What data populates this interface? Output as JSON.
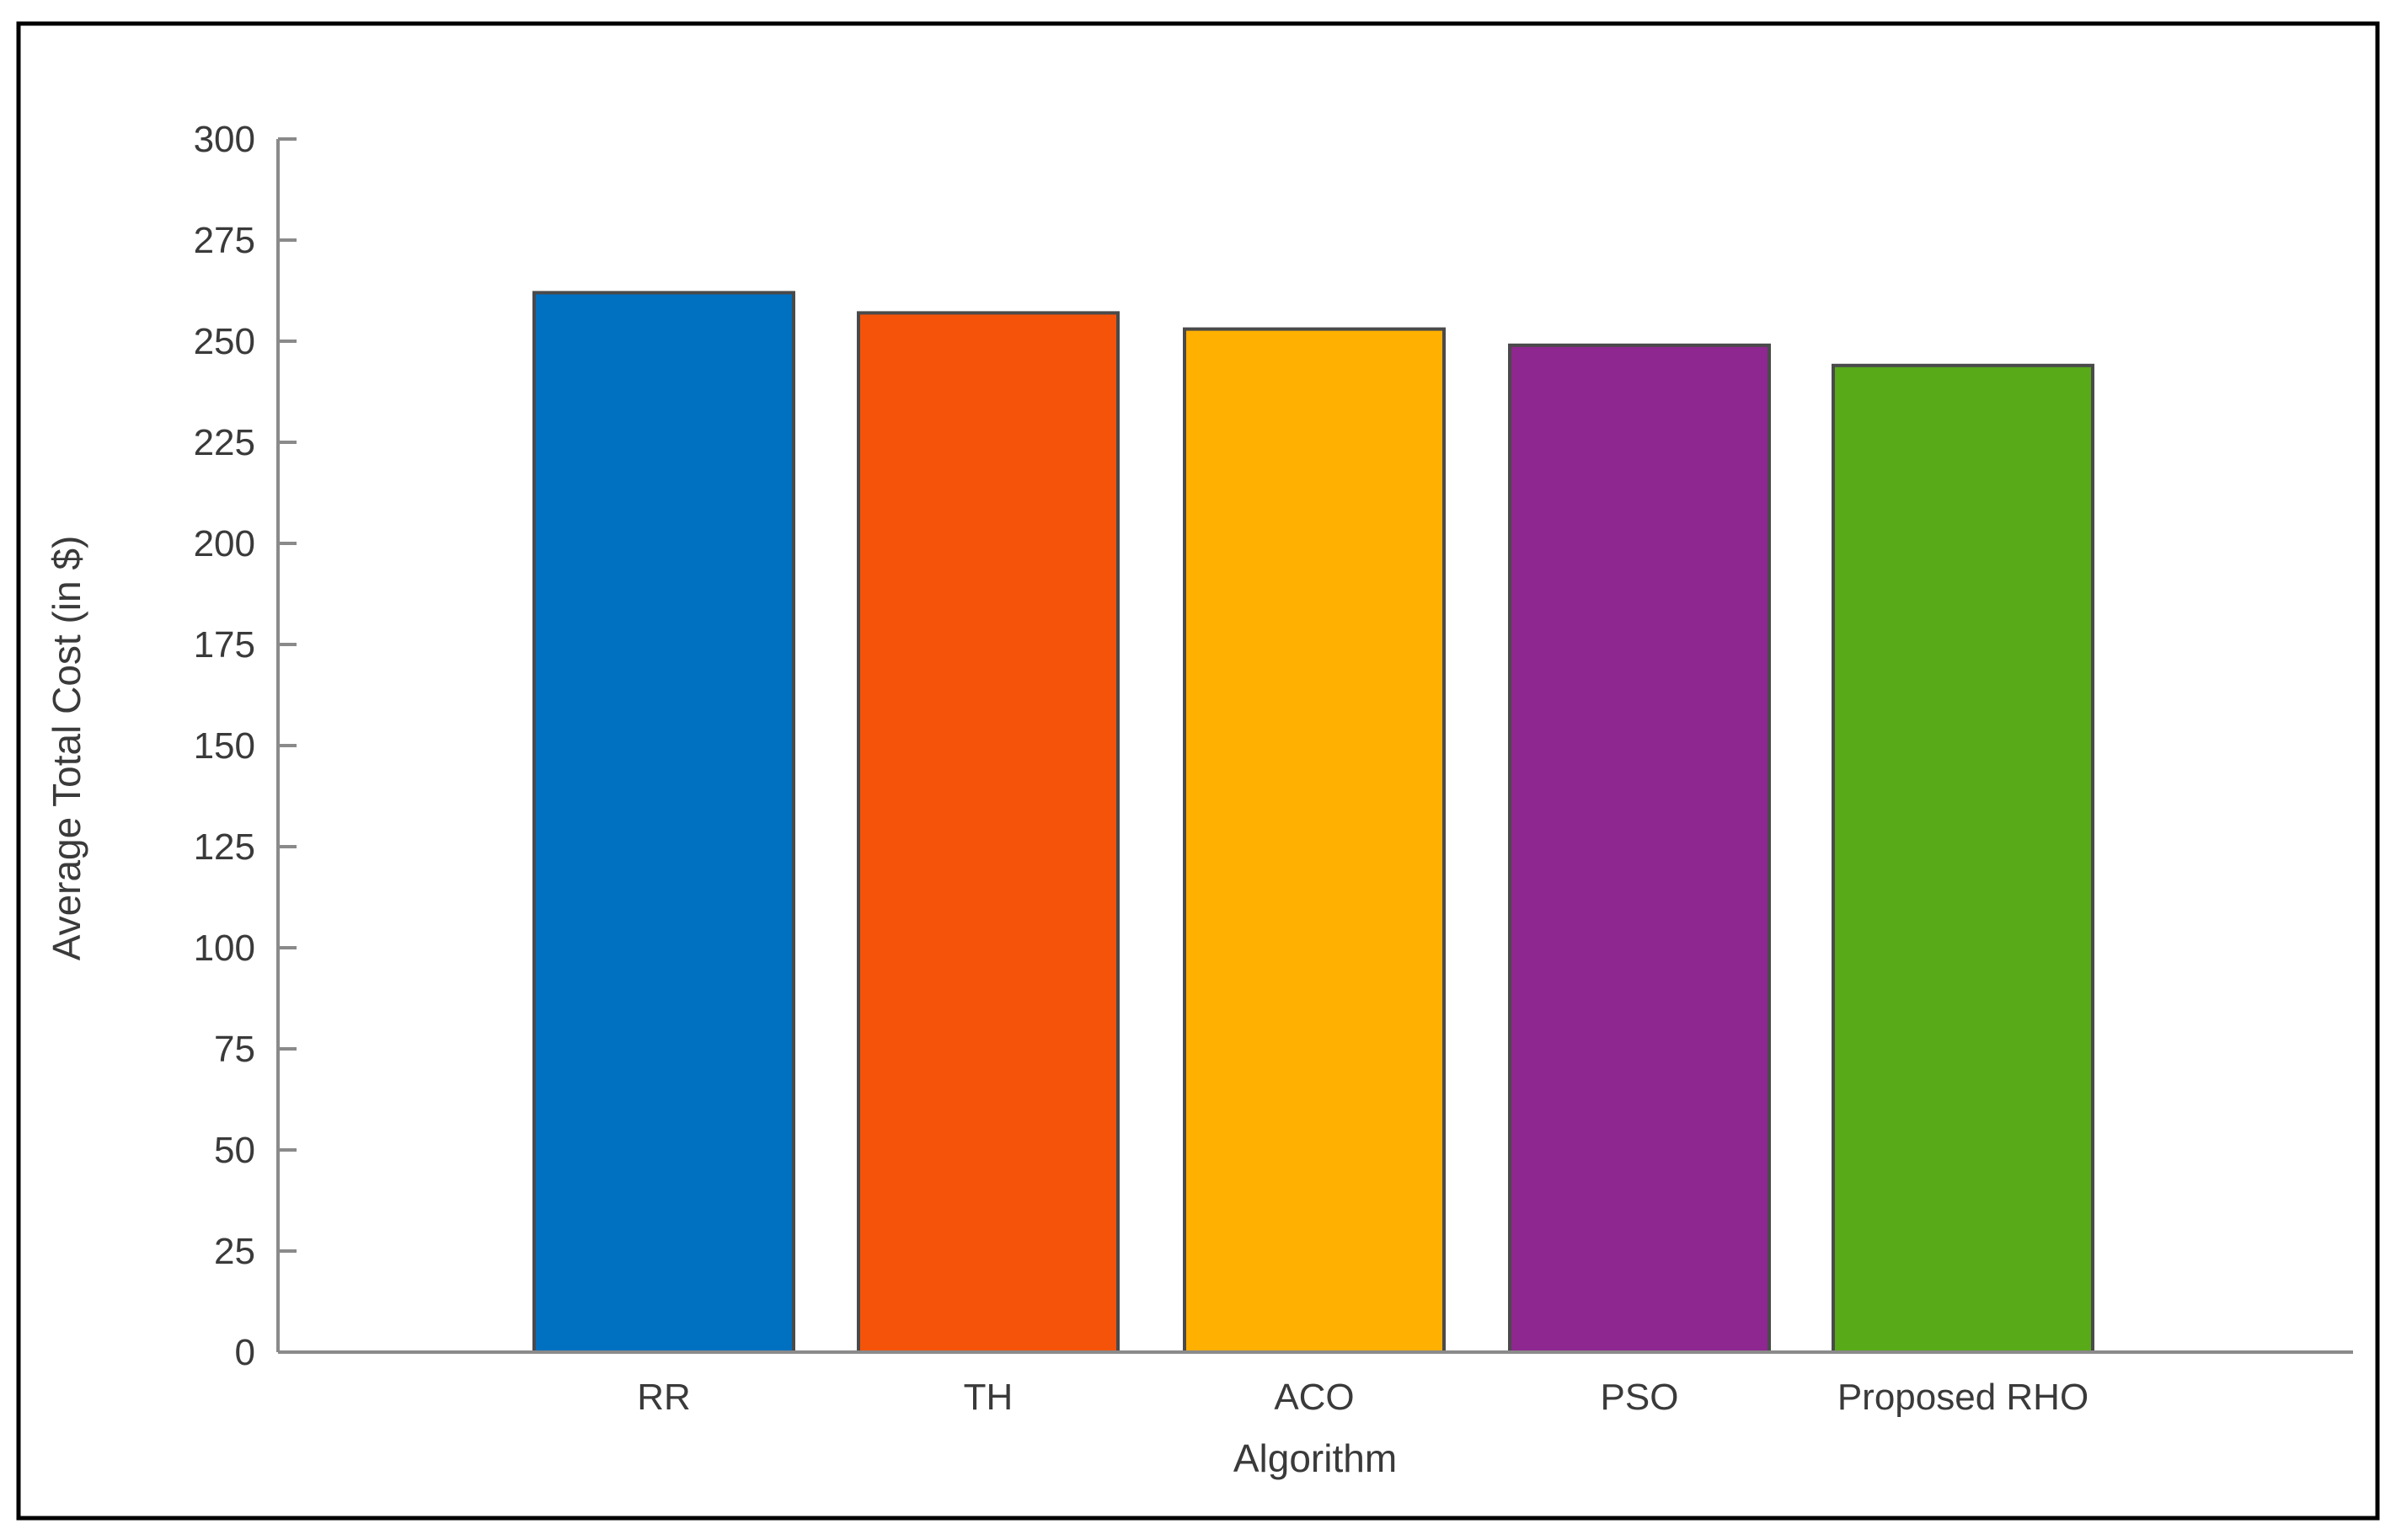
{
  "chart_data": {
    "type": "bar",
    "title": "",
    "xlabel": "Algorithm",
    "ylabel": "Average Total Cost (in $)",
    "categories": [
      "RR",
      "TH",
      "ACO",
      "PSO",
      "Proposed RHO"
    ],
    "values": [
      262,
      257,
      253,
      249,
      244
    ],
    "colors": [
      "#0070C0",
      "#F5530A",
      "#FFB000",
      "#8E278F",
      "#58AA19"
    ],
    "ylim": [
      0,
      300
    ],
    "yticks": [
      0,
      25,
      50,
      75,
      100,
      125,
      150,
      175,
      200,
      225,
      250,
      275,
      300
    ],
    "grid": false,
    "legend": "none"
  },
  "style": {
    "frame_color": "#000000",
    "axis_color": "#8a8a8a",
    "bar_edge_color": "#4a4a4a",
    "text_color": "#3a3a3a"
  }
}
